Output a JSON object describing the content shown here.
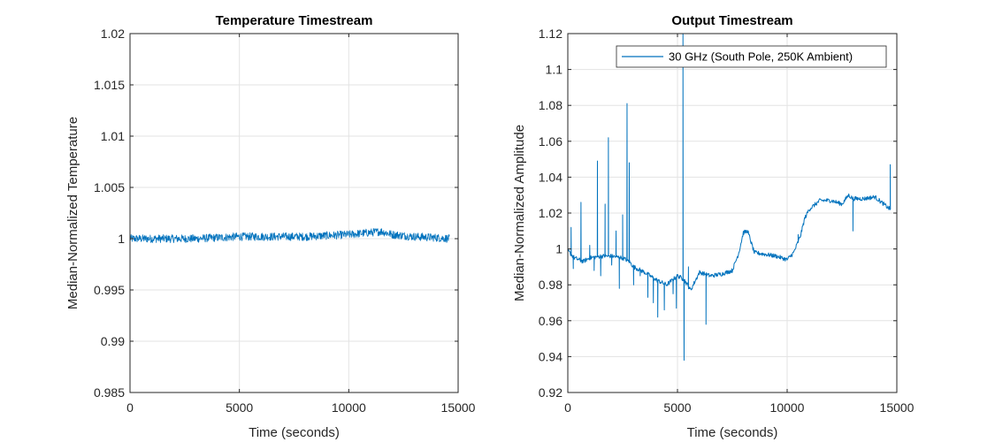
{
  "chart_data": [
    {
      "type": "line",
      "title": "Temperature Timestream",
      "xlabel": "Time (seconds)",
      "ylabel": "Median-Normalized Temperature",
      "xlim": [
        0,
        15000
      ],
      "ylim": [
        0.985,
        1.02
      ],
      "xticks": [
        "0",
        "5000",
        "10000",
        "15000"
      ],
      "yticks": [
        "0.985",
        "0.99",
        "0.995",
        "1",
        "1.005",
        "1.01",
        "1.015",
        "1.02"
      ],
      "grid": true,
      "color": "#0072BD",
      "x": [
        0,
        1000,
        2000,
        3000,
        4000,
        5000,
        6000,
        7000,
        8000,
        9000,
        10000,
        11000,
        11500,
        12000,
        13000,
        14000,
        14600
      ],
      "y": [
        1.0,
        1.0,
        1.0,
        1.0,
        1.0001,
        1.0002,
        1.0002,
        1.0002,
        1.0002,
        1.0003,
        1.0004,
        1.0006,
        1.0007,
        1.0004,
        1.0002,
        1.0001,
        1.0
      ],
      "noise_band": 0.0004
    },
    {
      "type": "line",
      "title": "Output Timestream",
      "xlabel": "Time (seconds)",
      "ylabel": "Median-Normalized Amplitude",
      "xlim": [
        0,
        15000
      ],
      "ylim": [
        0.92,
        1.12
      ],
      "xticks": [
        "0",
        "5000",
        "10000",
        "15000"
      ],
      "yticks": [
        "0.92",
        "0.94",
        "0.96",
        "0.98",
        "1",
        "1.02",
        "1.04",
        "1.06",
        "1.08",
        "1.1",
        "1.12"
      ],
      "grid": true,
      "legend": {
        "label": "30 GHz (South Pole, 250K Ambient)",
        "position": "top-right"
      },
      "color": "#0072BD",
      "x": [
        0,
        300,
        700,
        1000,
        1500,
        2000,
        2500,
        2800,
        3000,
        3500,
        4000,
        4500,
        5000,
        5300,
        5600,
        6000,
        6500,
        7000,
        7500,
        7800,
        8000,
        8200,
        8500,
        9000,
        9500,
        10000,
        10300,
        10600,
        10800,
        11000,
        11500,
        12000,
        12500,
        12800,
        13000,
        13500,
        14000,
        14400,
        14700
      ],
      "y": [
        0.999,
        0.995,
        0.993,
        0.995,
        0.996,
        0.996,
        0.995,
        0.993,
        0.99,
        0.987,
        0.983,
        0.98,
        0.985,
        0.983,
        0.977,
        0.987,
        0.985,
        0.986,
        0.988,
        0.998,
        1.009,
        1.01,
        0.998,
        0.997,
        0.996,
        0.994,
        0.998,
        1.007,
        1.017,
        1.022,
        1.027,
        1.027,
        1.025,
        1.03,
        1.028,
        1.028,
        1.029,
        1.025,
        1.022
      ],
      "spikes": [
        {
          "x": 150,
          "y": 1.012
        },
        {
          "x": 250,
          "y": 0.989
        },
        {
          "x": 600,
          "y": 1.026
        },
        {
          "x": 1000,
          "y": 1.002
        },
        {
          "x": 1200,
          "y": 0.988
        },
        {
          "x": 1350,
          "y": 1.049
        },
        {
          "x": 1500,
          "y": 0.985
        },
        {
          "x": 1700,
          "y": 1.025
        },
        {
          "x": 1850,
          "y": 1.062
        },
        {
          "x": 2000,
          "y": 0.991
        },
        {
          "x": 2200,
          "y": 1.01
        },
        {
          "x": 2350,
          "y": 0.978
        },
        {
          "x": 2500,
          "y": 1.019
        },
        {
          "x": 2700,
          "y": 1.081
        },
        {
          "x": 2800,
          "y": 1.048
        },
        {
          "x": 3000,
          "y": 0.98
        },
        {
          "x": 3300,
          "y": 0.985
        },
        {
          "x": 3650,
          "y": 0.973
        },
        {
          "x": 3900,
          "y": 0.97
        },
        {
          "x": 4100,
          "y": 0.962
        },
        {
          "x": 4400,
          "y": 0.966
        },
        {
          "x": 4800,
          "y": 0.975
        },
        {
          "x": 4950,
          "y": 0.967
        },
        {
          "x": 5100,
          "y": 0.985
        },
        {
          "x": 5250,
          "y": 1.12
        },
        {
          "x": 5300,
          "y": 0.938
        },
        {
          "x": 5500,
          "y": 0.99
        },
        {
          "x": 6300,
          "y": 0.958
        },
        {
          "x": 10500,
          "y": 1.008
        },
        {
          "x": 13000,
          "y": 1.01
        },
        {
          "x": 14700,
          "y": 1.047
        }
      ]
    }
  ]
}
